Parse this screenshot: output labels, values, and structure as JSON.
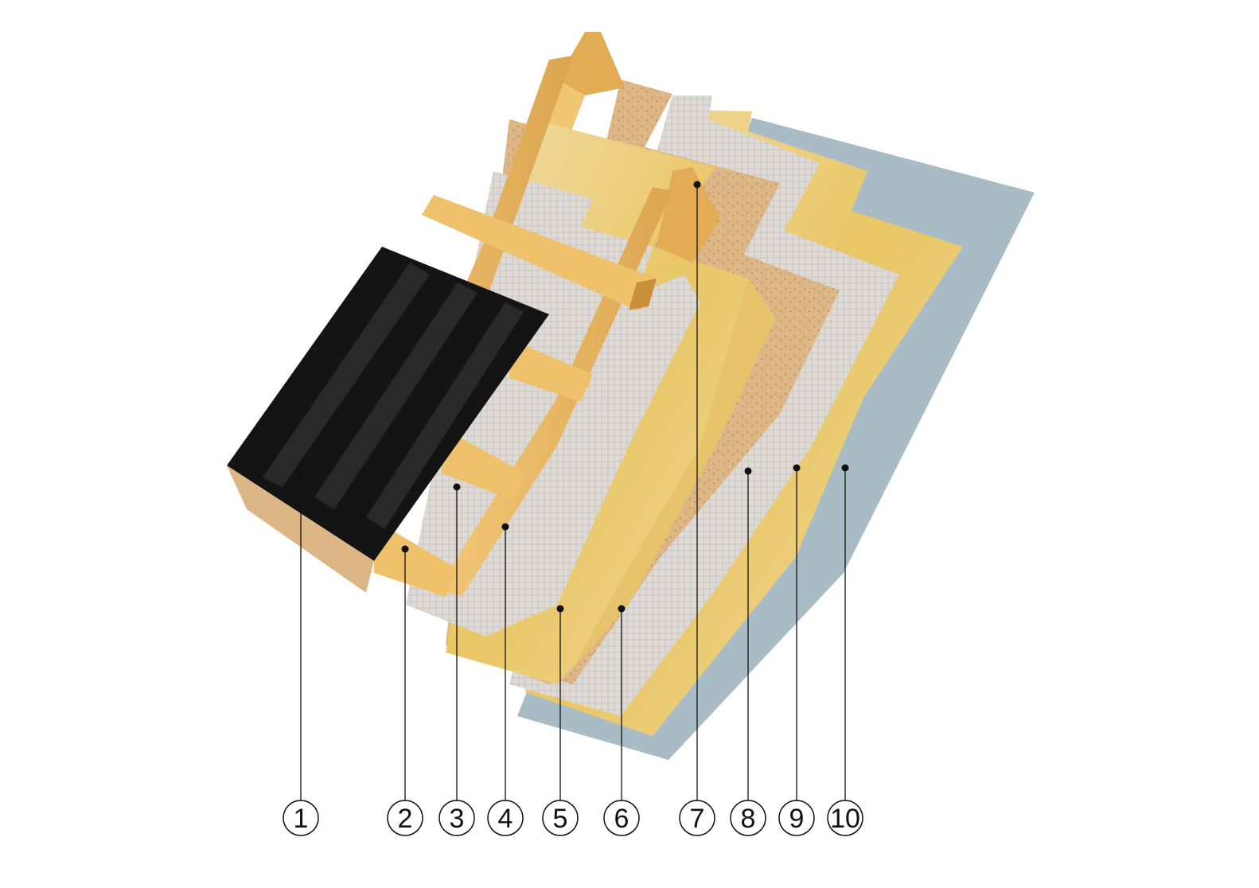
{
  "diagram": {
    "colors": {
      "metal_sheet": "#141414",
      "metal_rib_light": "#3a3a3a",
      "wood": "#e8b560",
      "wood_dark": "#c98f3a",
      "wood_light": "#f3cf86",
      "membrane": "#dcd8d3",
      "mineral_wool": "#f0d59a",
      "mineral_wool_dark": "#e6c56a",
      "chipboard": "#ddb98a",
      "chipboard_dark": "#c9a06c",
      "ceiling_board": "#a9bcc6",
      "leader_line": "#111111"
    },
    "labels": [
      {
        "id": "1",
        "text": "1"
      },
      {
        "id": "2",
        "text": "2"
      },
      {
        "id": "3",
        "text": "3"
      },
      {
        "id": "4",
        "text": "4"
      },
      {
        "id": "5",
        "text": "5"
      },
      {
        "id": "6",
        "text": "6"
      },
      {
        "id": "7",
        "text": "7"
      },
      {
        "id": "8",
        "text": "8"
      },
      {
        "id": "9",
        "text": "9"
      },
      {
        "id": "10",
        "text": "10"
      }
    ]
  }
}
